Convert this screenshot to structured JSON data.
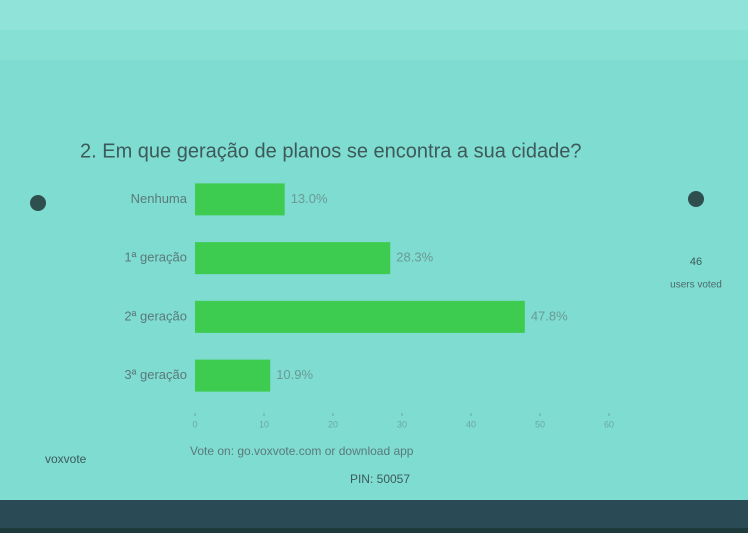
{
  "chart_data": {
    "type": "bar",
    "orientation": "horizontal",
    "title": "2. Em que geração de planos se encontra a sua cidade?",
    "categories": [
      "Nenhuma",
      "1ª geração",
      "2ª geração",
      "3ª geração"
    ],
    "values": [
      13.0,
      28.3,
      47.8,
      10.9
    ],
    "value_labels": [
      "13.0%",
      "28.3%",
      "47.8%",
      "10.9%"
    ],
    "color": "#3dcc4f",
    "xlim": [
      0,
      60
    ],
    "xticks": [
      0,
      10,
      20,
      30,
      40,
      50,
      60
    ],
    "annotations": [
      "46",
      "users voted"
    ]
  },
  "footer": {
    "brand": "voxvote",
    "vote_text": "Vote on: go.voxvote.com or download app",
    "pin": "PIN: 50057"
  }
}
